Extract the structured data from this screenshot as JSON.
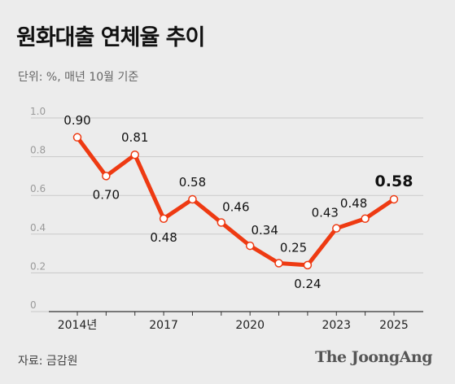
{
  "header": {
    "title": "원화대출 연체율 추이",
    "subtitle": "단위: %, 매년 10월 기준"
  },
  "footer": {
    "source": "자료: 금감원",
    "brand": "The JoongAng"
  },
  "colors": {
    "line": "#ee3a12",
    "marker_fill": "#ffffff",
    "grid": "#c9c9c9",
    "tick_text": "#9a9a9a",
    "background": "#ececec"
  },
  "chart_data": {
    "type": "line",
    "x": [
      2014,
      2015,
      2016,
      2017,
      2018,
      2019,
      2020,
      2021,
      2022,
      2023,
      2024,
      2025
    ],
    "values": [
      0.9,
      0.7,
      0.81,
      0.48,
      0.58,
      0.46,
      0.34,
      0.25,
      0.24,
      0.43,
      0.48,
      0.58
    ],
    "data_labels": [
      "0.90",
      "0.70",
      "0.81",
      "0.48",
      "0.58",
      "0.46",
      "0.34",
      "0.25",
      "0.24",
      "0.43",
      "0.48",
      "0.58"
    ],
    "x_tick_values": [
      2014,
      2017,
      2020,
      2023,
      2025
    ],
    "x_tick_labels": [
      "2014년",
      "2017",
      "2020",
      "2023",
      "2025"
    ],
    "y_ticks": [
      "0",
      "0.2",
      "0.4",
      "0.6",
      "0.8",
      "1.0"
    ],
    "ylim": [
      0,
      1.0
    ],
    "grid": true,
    "highlight_last": true
  }
}
